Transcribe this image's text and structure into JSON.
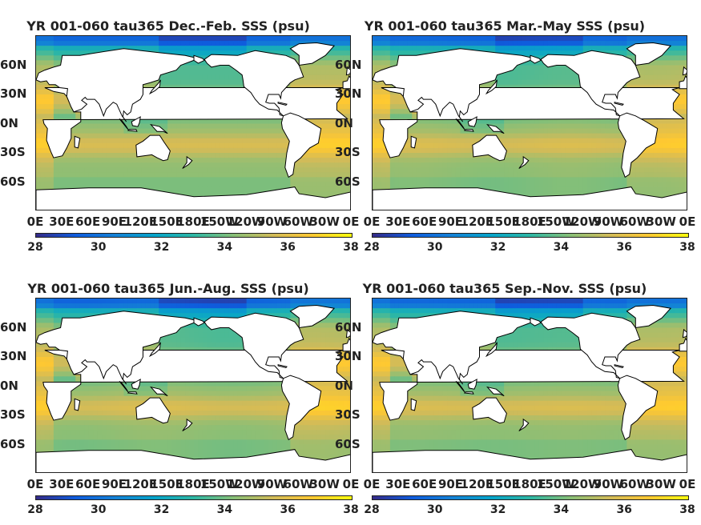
{
  "figure": {
    "panels": [
      {
        "title": "YR 001-060 tau365 Dec.-Feb. SSS (psu)",
        "season": "DJF"
      },
      {
        "title": "YR 001-060 tau365 Mar.-May SSS (psu)",
        "season": "MAM"
      },
      {
        "title": "YR 001-060 tau365 Jun.-Aug. SSS (psu)",
        "season": "JJA"
      },
      {
        "title": "YR 001-060 tau365 Sep.-Nov. SSS (psu)",
        "season": "SON"
      }
    ],
    "lat_ticks": [
      "60N",
      "30N",
      "0N",
      "30S",
      "60S"
    ],
    "lon_ticks": [
      "0E",
      "30E",
      "60E",
      "90E",
      "120E",
      "150E",
      "180E",
      "150W",
      "120W",
      "90W",
      "60W",
      "30W",
      "0E"
    ],
    "colorbar_ticks": [
      "28",
      "30",
      "32",
      "34",
      "36",
      "38"
    ],
    "colorbar_range": [
      28,
      38
    ],
    "colormap": "parula",
    "colormap_stops": [
      "#352a87",
      "#0f5cdd",
      "#1481d6",
      "#06a4ca",
      "#2eb7a4",
      "#87bf77",
      "#d1bb59",
      "#fec832",
      "#f9fb0e"
    ],
    "land_color": "#ffffff",
    "coast_color": "#000000"
  }
}
